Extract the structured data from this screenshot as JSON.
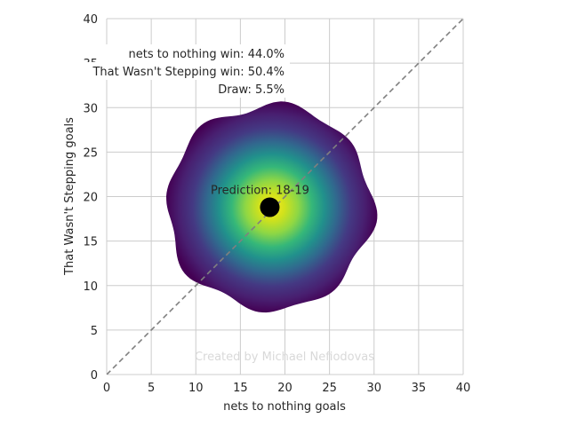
{
  "chart_data": {
    "type": "heatmap",
    "xlabel": "nets to nothing goals",
    "ylabel": "That Wasn't Stepping goals",
    "xlim": [
      0,
      40
    ],
    "ylim": [
      0,
      40
    ],
    "x_ticks": [
      "0",
      "5",
      "10",
      "15",
      "20",
      "25",
      "30",
      "35",
      "40"
    ],
    "y_ticks": [
      "0",
      "5",
      "10",
      "15",
      "20",
      "25",
      "30",
      "35",
      "40"
    ],
    "grid": true,
    "colormap": "viridis",
    "density_center": [
      18.3,
      18.8
    ],
    "density_radius": 11.5,
    "prediction_point": {
      "x": 18.3,
      "y": 18.8
    },
    "prediction_label": "Prediction: 18-19",
    "diagonal_line": {
      "from": [
        0,
        0
      ],
      "to": [
        40,
        40
      ],
      "style": "dashed",
      "color": "#808080"
    },
    "outcomes": [
      {
        "label": "nets to nothing win: 44.0%",
        "value": 44.0
      },
      {
        "label": "That Wasn't Stepping win: 50.4%",
        "value": 50.4
      },
      {
        "label": "Draw: 5.5%",
        "value": 5.5
      }
    ],
    "watermark": "Created by Michael Nefiodovas"
  }
}
